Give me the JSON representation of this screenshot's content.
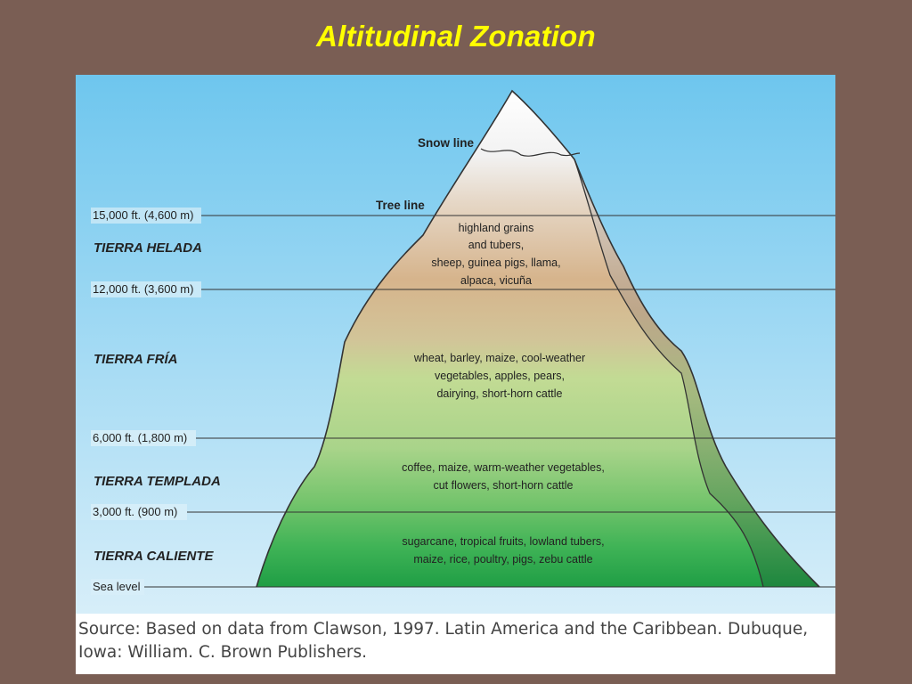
{
  "title": "Altitudinal Zonation",
  "diagram": {
    "markers": {
      "snow_line": "Snow line",
      "tree_line": "Tree line"
    },
    "altitudes": [
      "15,000 ft. (4,600 m)",
      "12,000 ft. (3,600 m)",
      "6,000 ft. (1,800 m)",
      "3,000 ft. (900 m)",
      "Sea level"
    ],
    "zones": [
      {
        "name": "TIERRA HELADA",
        "products": [
          "highland grains",
          "and tubers,",
          "sheep, guinea pigs, llama,",
          "alpaca, vicuña"
        ]
      },
      {
        "name": "TIERRA FRÍA",
        "products": [
          "wheat, barley, maize, cool-weather",
          "vegetables, apples, pears,",
          "dairying, short-horn cattle"
        ]
      },
      {
        "name": "TIERRA TEMPLADA",
        "products": [
          "coffee, maize, warm-weather vegetables,",
          "cut flowers, short-horn cattle"
        ]
      },
      {
        "name": "TIERRA CALIENTE",
        "products": [
          "sugarcane, tropical fruits, lowland tubers,",
          "maize, rice, poultry, pigs, zebu cattle"
        ]
      }
    ]
  },
  "source": {
    "line1": "Source: Based on data from Clawson, 1997. Latin America and the Caribbean. Dubuque,",
    "line2": "Iowa: William. C. Brown Publishers."
  },
  "colors": {
    "background": "#7a5e54",
    "title": "#ffff00",
    "sky_top": "#6ec6ee",
    "sky_bottom": "#d7eef9",
    "snow": "#ffffff",
    "highland": "#d6b48c",
    "fria": "#c2db94",
    "caliente": "#27a84a"
  }
}
